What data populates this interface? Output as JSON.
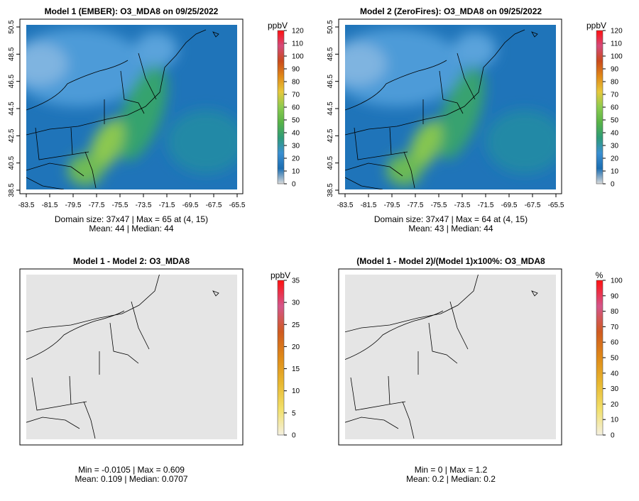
{
  "colors": {
    "colorbar": [
      "#d9d9d9",
      "#1b6db1",
      "#3a8fd1",
      "#2e9b78",
      "#58b347",
      "#8ccb4f",
      "#e6c83c",
      "#e08a18",
      "#c94a1c",
      "#d44a7a",
      "#ff1010"
    ],
    "diff_colorbar": [
      "#f4f0e0",
      "#f2e06a",
      "#e8b830",
      "#df8a18",
      "#cf5a20",
      "#d4558a",
      "#ff1010"
    ],
    "pct_colorbar": [
      "#f4f0e0",
      "#f2e06a",
      "#e8b830",
      "#df8a18",
      "#cf5a20",
      "#d4558a",
      "#ff1010"
    ],
    "ocean": "#1f74b9",
    "land_far": "#3f8ed3",
    "plume": "#9ccc4a",
    "flat_panel": "#e5e5e5"
  },
  "panels": [
    {
      "title": "Model 1 (EMBER): O3_MDA8 on 09/25/2022",
      "unit": "ppbV",
      "map_style": "concentration",
      "x_ticks": [
        "-83.5",
        "-81.5",
        "-79.5",
        "-77.5",
        "-75.5",
        "-73.5",
        "-71.5",
        "-69.5",
        "-67.5",
        "-65.5"
      ],
      "y_ticks": [
        "38.5",
        "40.5",
        "42.5",
        "44.5",
        "46.5",
        "48.5",
        "50.5"
      ],
      "colorbar_ticks": [
        "0",
        "10",
        "20",
        "30",
        "40",
        "50",
        "60",
        "70",
        "80",
        "90",
        "100",
        "110",
        "120"
      ],
      "stats_line1": "Domain size: 37x47 | Max = 65 at (4, 15)",
      "stats_line2": "Mean: 44 |  Median: 44"
    },
    {
      "title": "Model 2 (ZeroFires): O3_MDA8 on 09/25/2022",
      "unit": "ppbV",
      "map_style": "concentration",
      "x_ticks": [
        "-83.5",
        "-81.5",
        "-79.5",
        "-77.5",
        "-75.5",
        "-73.5",
        "-71.5",
        "-69.5",
        "-67.5",
        "-65.5"
      ],
      "y_ticks": [
        "38.5",
        "40.5",
        "42.5",
        "44.5",
        "46.5",
        "48.5",
        "50.5"
      ],
      "colorbar_ticks": [
        "0",
        "10",
        "20",
        "30",
        "40",
        "50",
        "60",
        "70",
        "80",
        "90",
        "100",
        "110",
        "120"
      ],
      "stats_line1": "Domain size: 37x47 | Max = 64 at (4, 15)",
      "stats_line2": "Mean: 43 |  Median: 44"
    },
    {
      "title": "Model 1 - Model 2: O3_MDA8",
      "unit": "ppbV",
      "map_style": "flat",
      "x_ticks": [],
      "y_ticks": [],
      "colorbar_ticks": [
        "0",
        "5",
        "10",
        "15",
        "20",
        "25",
        "30",
        "35"
      ],
      "stats_line1": "Min = -0.0105 | Max = 0.609",
      "stats_line2": "Mean: 0.109 |  Median: 0.0707"
    },
    {
      "title": "(Model 1 - Model 2)/(Model 1)x100%: O3_MDA8",
      "unit": "%",
      "map_style": "flat",
      "x_ticks": [],
      "y_ticks": [],
      "colorbar_ticks": [
        "0",
        "10",
        "20",
        "30",
        "40",
        "50",
        "60",
        "70",
        "80",
        "90",
        "100"
      ],
      "stats_line1": "Min = 0 | Max = 1.2",
      "stats_line2": "Mean: 0.2 |  Median: 0.2"
    }
  ],
  "chart_data": [
    {
      "type": "heatmap",
      "title": "Model 1 (EMBER): O3_MDA8 on 09/25/2022",
      "colorbar_label": "ppbV",
      "colorbar_range": [
        0,
        120
      ],
      "xlim": [
        -83.5,
        -65.5
      ],
      "ylim": [
        38.5,
        50.5
      ],
      "domain_size": "37x47",
      "max": 65,
      "max_cell": [
        4,
        15
      ],
      "mean": 44,
      "median": 44
    },
    {
      "type": "heatmap",
      "title": "Model 2 (ZeroFires): O3_MDA8 on 09/25/2022",
      "colorbar_label": "ppbV",
      "colorbar_range": [
        0,
        120
      ],
      "xlim": [
        -83.5,
        -65.5
      ],
      "ylim": [
        38.5,
        50.5
      ],
      "domain_size": "37x47",
      "max": 64,
      "max_cell": [
        4,
        15
      ],
      "mean": 43,
      "median": 44
    },
    {
      "type": "heatmap",
      "title": "Model 1 - Model 2: O3_MDA8",
      "colorbar_label": "ppbV",
      "colorbar_range": [
        0,
        35
      ],
      "min": -0.0105,
      "max": 0.609,
      "mean": 0.109,
      "median": 0.0707
    },
    {
      "type": "heatmap",
      "title": "(Model 1 - Model 2)/(Model 1)x100%: O3_MDA8",
      "colorbar_label": "%",
      "colorbar_range": [
        0,
        100
      ],
      "min": 0,
      "max": 1.2,
      "mean": 0.2,
      "median": 0.2
    }
  ]
}
